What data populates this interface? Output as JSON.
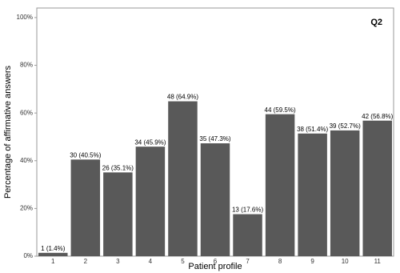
{
  "chart_data": {
    "type": "bar",
    "annotation": "Q2",
    "x_label": "Patient profile",
    "y_label": "Percentage of affirmative answers",
    "categories": [
      "1",
      "2",
      "3",
      "4",
      "5",
      "6",
      "7",
      "8",
      "9",
      "10",
      "11"
    ],
    "values": [
      1.4,
      40.5,
      35.1,
      45.9,
      64.9,
      47.3,
      17.6,
      59.5,
      51.4,
      52.7,
      56.8
    ],
    "value_labels": [
      "1 (1.4%)",
      "30 (40.5%)",
      "26 (35.1%)",
      "34 (45.9%)",
      "48 (64.9%)",
      "35 (47.3%)",
      "13 (17.6%)",
      "44 (59.5%)",
      "38 (51.4%)",
      "39 (52.7%)",
      "42 (56.8%)"
    ],
    "color": "#595959",
    "ylim": [
      0,
      104
    ],
    "yticks": [
      {
        "value": 0,
        "label": "0%"
      },
      {
        "value": 20,
        "label": "20%"
      },
      {
        "value": 40,
        "label": "40%"
      },
      {
        "value": 60,
        "label": "60%"
      },
      {
        "value": 80,
        "label": "80%"
      },
      {
        "value": 100,
        "label": "100%"
      }
    ],
    "grid": false
  }
}
